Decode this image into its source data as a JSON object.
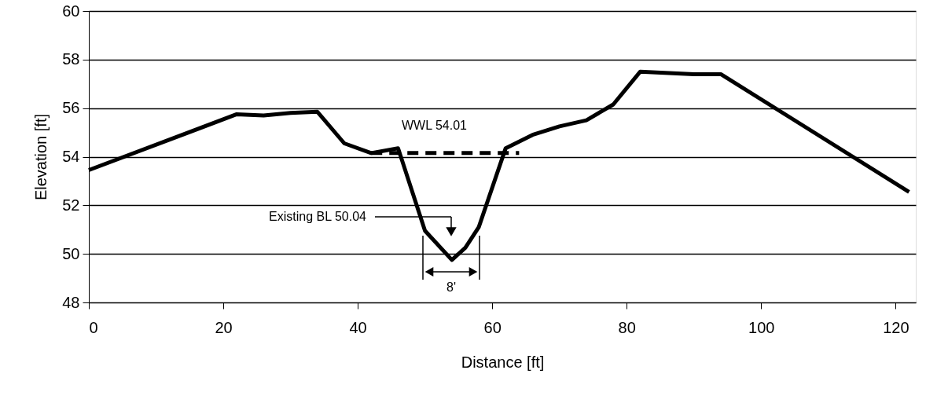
{
  "chart_data": {
    "type": "line",
    "xlabel": "Distance [ft]",
    "ylabel": "Elevation [ft]",
    "xlim": [
      0,
      123
    ],
    "ylim": [
      48,
      60
    ],
    "xticks": [
      0,
      20,
      40,
      60,
      80,
      100,
      120
    ],
    "yticks": [
      48,
      50,
      52,
      54,
      56,
      58,
      60
    ],
    "grid": "y",
    "marker": "none",
    "series": [
      {
        "color": "#000000",
        "line_style": "solid",
        "x": [
          0,
          22,
          26,
          30,
          34,
          38,
          42,
          46,
          50,
          54,
          56,
          58,
          62,
          66,
          70,
          74,
          78,
          82,
          90,
          94,
          122
        ],
        "values": [
          53.45,
          55.75,
          55.7,
          55.8,
          55.85,
          54.55,
          54.15,
          54.35,
          50.95,
          49.75,
          50.25,
          51.1,
          54.35,
          54.9,
          55.25,
          55.5,
          56.15,
          57.5,
          57.4,
          57.4,
          52.55
        ]
      },
      {
        "color": "#000000",
        "line_style": "dashed",
        "x": [
          42,
          64
        ],
        "values": [
          54.15,
          54.15
        ]
      }
    ],
    "annotations": [
      "WWL    54.01",
      "Existing BL  50.04",
      "8'"
    ]
  }
}
